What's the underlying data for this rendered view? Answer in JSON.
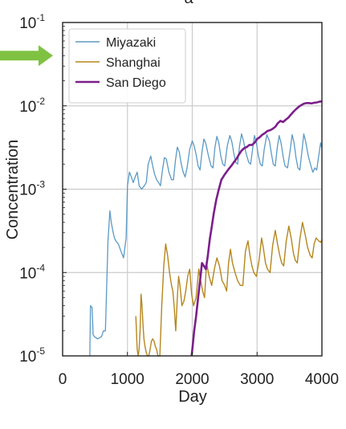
{
  "panel_label": "a",
  "chart_data": {
    "type": "line",
    "xlabel": "Day",
    "ylabel": "Concentration",
    "xlim": [
      0,
      4000
    ],
    "ylim": [
      1e-05,
      0.1
    ],
    "yscale": "log",
    "grid": true,
    "legend_position": "top-left",
    "x_ticks": [
      0,
      1000,
      2000,
      3000,
      4000
    ],
    "x_tick_labels": [
      "0",
      "1000",
      "2000",
      "3000",
      "4000"
    ],
    "y_ticks": [
      {
        "value": 1e-05,
        "base": "10",
        "exp": "-5"
      },
      {
        "value": 0.0001,
        "base": "10",
        "exp": "-4"
      },
      {
        "value": 0.001,
        "base": "10",
        "exp": "-3"
      },
      {
        "value": 0.01,
        "base": "10",
        "exp": "-2"
      },
      {
        "value": 0.1,
        "base": "10",
        "exp": "-1"
      }
    ],
    "arrow": {
      "color": "#7fc242",
      "y": 0.04
    },
    "series": [
      {
        "name": "Miyazaki",
        "color": "#5b9ac4",
        "stroke_width": 1.3,
        "x": [
          420,
          430,
          455,
          470,
          490,
          540,
          600,
          630,
          660,
          700,
          730,
          750,
          780,
          800,
          820,
          860,
          900,
          940,
          980,
          1000,
          1030,
          1060,
          1090,
          1120,
          1150,
          1180,
          1220,
          1260,
          1290,
          1320,
          1360,
          1390,
          1420,
          1450,
          1480,
          1510,
          1540,
          1570,
          1600,
          1640,
          1680,
          1710,
          1740,
          1770,
          1800,
          1830,
          1860,
          1890,
          1920,
          1960,
          2000,
          2030,
          2060,
          2090,
          2120,
          2150,
          2180,
          2210,
          2250,
          2290,
          2320,
          2350,
          2380,
          2410,
          2440,
          2470,
          2500,
          2540,
          2580,
          2610,
          2640,
          2670,
          2700,
          2730,
          2760,
          2790,
          2830,
          2870,
          2900,
          2930,
          2960,
          2990,
          3020,
          3050,
          3080,
          3110,
          3150,
          3190,
          3220,
          3250,
          3280,
          3310,
          3340,
          3370,
          3400,
          3430,
          3470,
          3510,
          3540,
          3570,
          3600,
          3630,
          3660,
          3690,
          3720,
          3750,
          3790,
          3830,
          3860,
          3890,
          3920,
          3950,
          3980,
          4000
        ],
        "y": [
          1e-05,
          4e-05,
          3.8e-05,
          1.8e-05,
          1.7e-05,
          1.6e-05,
          1.7e-05,
          2e-05,
          2e-05,
          0.00024,
          0.00055,
          0.0004,
          0.0003,
          0.00026,
          0.00024,
          0.00022,
          0.00018,
          0.00015,
          0.00026,
          0.0011,
          0.0016,
          0.0014,
          0.0012,
          0.0014,
          0.0016,
          0.0011,
          0.001,
          0.0011,
          0.0012,
          0.002,
          0.0025,
          0.0019,
          0.0015,
          0.0013,
          0.0012,
          0.0011,
          0.0017,
          0.0024,
          0.0023,
          0.0016,
          0.0013,
          0.0013,
          0.0022,
          0.0032,
          0.0028,
          0.002,
          0.0016,
          0.0014,
          0.0018,
          0.003,
          0.0038,
          0.0033,
          0.0026,
          0.0019,
          0.0017,
          0.0028,
          0.004,
          0.0035,
          0.0025,
          0.0019,
          0.0018,
          0.0032,
          0.0043,
          0.0036,
          0.0025,
          0.002,
          0.0019,
          0.0033,
          0.0044,
          0.0037,
          0.0027,
          0.0021,
          0.002,
          0.0033,
          0.0046,
          0.0038,
          0.0027,
          0.0021,
          0.002,
          0.003,
          0.0044,
          0.0036,
          0.0025,
          0.002,
          0.0019,
          0.003,
          0.0045,
          0.0038,
          0.0027,
          0.002,
          0.0019,
          0.0031,
          0.0044,
          0.0036,
          0.0025,
          0.0019,
          0.0018,
          0.0029,
          0.0045,
          0.0036,
          0.0024,
          0.0018,
          0.0017,
          0.0028,
          0.0046,
          0.0037,
          0.0025,
          0.0019,
          0.0016,
          0.0018,
          0.0017,
          0.0025,
          0.0036,
          0.0031
        ]
      },
      {
        "name": "Shanghai",
        "color": "#b5861d",
        "stroke_width": 1.4,
        "x": [
          1130,
          1150,
          1165,
          1180,
          1195,
          1210,
          1225,
          1240,
          1255,
          1270,
          1290,
          1310,
          1330,
          1350,
          1370,
          1390,
          1410,
          1430,
          1450,
          1470,
          1500,
          1530,
          1560,
          1590,
          1620,
          1650,
          1680,
          1700,
          1720,
          1745,
          1770,
          1790,
          1810,
          1840,
          1870,
          1900,
          1930,
          1960,
          1990,
          2020,
          2060,
          2100,
          2130,
          2160,
          2190,
          2220,
          2260,
          2300,
          2340,
          2380,
          2420,
          2460,
          2500,
          2530,
          2560,
          2590,
          2620,
          2660,
          2700,
          2740,
          2780,
          2820,
          2860,
          2890,
          2920,
          2950,
          2990,
          3030,
          3070,
          3100,
          3130,
          3160,
          3200,
          3240,
          3280,
          3320,
          3350,
          3380,
          3410,
          3450,
          3490,
          3530,
          3560,
          3590,
          3620,
          3660,
          3700,
          3740,
          3780,
          3820,
          3850,
          3880,
          3910,
          3950,
          3980,
          4000
        ],
        "y": [
          3e-05,
          1.2e-05,
          1e-05,
          1.2e-05,
          2e-05,
          5.5e-05,
          4e-05,
          2.4e-05,
          1.6e-05,
          1.3e-05,
          1.1e-05,
          1e-05,
          1e-05,
          1.2e-05,
          1.5e-05,
          1.6e-05,
          1.5e-05,
          1.3e-05,
          1.2e-05,
          1e-05,
          1e-05,
          4e-05,
          0.00012,
          0.00022,
          0.00016,
          0.0001,
          7e-05,
          6e-05,
          4e-05,
          2e-05,
          5e-05,
          9e-05,
          7e-05,
          4e-05,
          4.5e-05,
          6e-05,
          9e-05,
          0.00011,
          5.5e-05,
          4e-05,
          5e-05,
          0.00011,
          8e-05,
          6e-05,
          5e-05,
          0.00013,
          9e-05,
          7e-05,
          0.00011,
          0.00015,
          0.00012,
          8e-05,
          7e-05,
          6e-05,
          0.00013,
          0.00019,
          0.00013,
          0.0001,
          8e-05,
          7e-05,
          7e-05,
          0.00018,
          0.00024,
          0.00016,
          0.00012,
          0.0001,
          9e-05,
          0.00014,
          0.00026,
          0.00019,
          0.00013,
          0.00011,
          0.0001,
          0.00021,
          0.00032,
          0.00021,
          0.00016,
          0.00013,
          0.00012,
          0.00024,
          0.00036,
          0.00025,
          0.00017,
          0.00014,
          0.00013,
          0.00025,
          0.0004,
          0.00029,
          0.0002,
          0.00016,
          0.00015,
          0.00022,
          0.00026,
          0.00024,
          0.00023,
          0.00025
        ]
      },
      {
        "name": "San Diego",
        "color": "#7b1f8a",
        "stroke_width": 2.6,
        "x": [
          1990,
          2010,
          2030,
          2060,
          2090,
          2120,
          2150,
          2180,
          2210,
          2240,
          2270,
          2300,
          2330,
          2370,
          2410,
          2450,
          2500,
          2550,
          2600,
          2640,
          2680,
          2720,
          2760,
          2800,
          2840,
          2880,
          2920,
          2960,
          3000,
          3040,
          3080,
          3120,
          3160,
          3200,
          3240,
          3280,
          3320,
          3360,
          3400,
          3440,
          3480,
          3520,
          3560,
          3600,
          3640,
          3680,
          3720,
          3760,
          3800,
          3840,
          3880,
          3920,
          3960,
          4000
        ],
        "y": [
          1e-05,
          1.4e-05,
          2e-05,
          3e-05,
          5e-05,
          8e-05,
          0.00013,
          0.00012,
          0.00011,
          0.00016,
          0.00025,
          0.00035,
          0.0005,
          0.00075,
          0.001,
          0.0013,
          0.0015,
          0.0017,
          0.0019,
          0.0021,
          0.0023,
          0.0026,
          0.0029,
          0.0031,
          0.0032,
          0.0034,
          0.0034,
          0.0036,
          0.004,
          0.0042,
          0.0045,
          0.0047,
          0.005,
          0.0051,
          0.0053,
          0.0056,
          0.0062,
          0.0066,
          0.0064,
          0.0068,
          0.0072,
          0.0078,
          0.0085,
          0.0091,
          0.0097,
          0.0102,
          0.0106,
          0.0108,
          0.0108,
          0.0107,
          0.0109,
          0.011,
          0.0112,
          0.0113
        ]
      }
    ]
  }
}
